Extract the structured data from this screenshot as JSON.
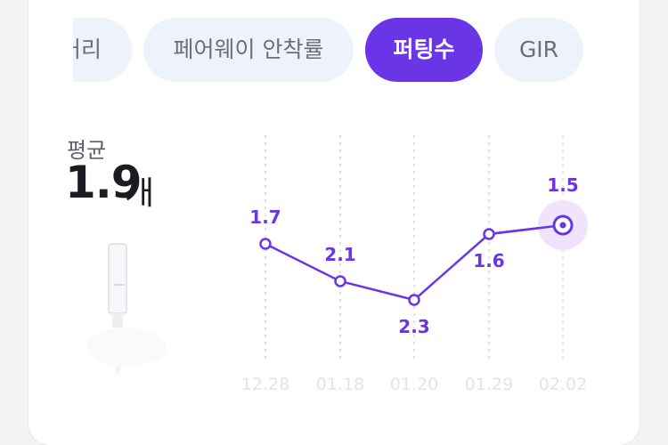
{
  "tabs": [
    {
      "label": "거리",
      "active": false
    },
    {
      "label": "페어웨이 안착률",
      "active": false
    },
    {
      "label": "퍼팅수",
      "active": true
    },
    {
      "label": "GIR",
      "active": false
    }
  ],
  "summary": {
    "label": "평균",
    "value": "1.9",
    "unit": "개"
  },
  "colors": {
    "accent": "#6a35e6",
    "chip_bg": "#eef2fb"
  },
  "icons": {
    "illustration": "putter-icon"
  },
  "chart_data": {
    "type": "line",
    "categories": [
      "12.28",
      "01.18",
      "01.20",
      "01.29",
      "02.02"
    ],
    "values": [
      1.7,
      2.1,
      2.3,
      1.6,
      1.5
    ],
    "labels": [
      "1.7",
      "2.1",
      "2.3",
      "1.6",
      "1.5"
    ],
    "highlight_index": 4,
    "grid": "vertical dotted"
  }
}
